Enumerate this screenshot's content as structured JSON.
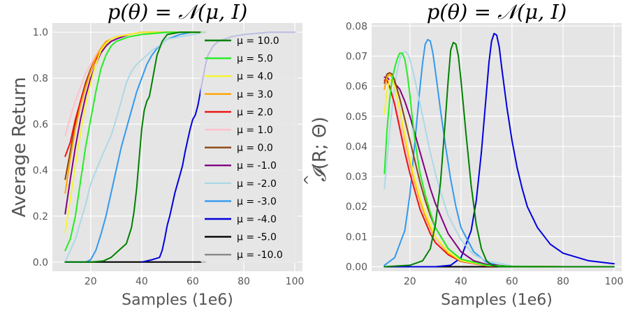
{
  "chart_data": [
    {
      "type": "line",
      "title": "p(θ) = 𝒩(μ, I)",
      "xlabel": "Samples (1e6)",
      "ylabel": "Average Return",
      "xlim": [
        5,
        103
      ],
      "ylim": [
        -0.04,
        1.04
      ],
      "xticks": [
        "20",
        "40",
        "60",
        "80",
        "100"
      ],
      "yticks": [
        "0.0",
        "0.2",
        "0.4",
        "0.6",
        "0.8",
        "1.0"
      ],
      "grid": true,
      "legend": "right",
      "series": [
        {
          "name": "μ = 10.0",
          "color": "#008000",
          "x": [
            10,
            20,
            25,
            28,
            30,
            32,
            34,
            36,
            37,
            38,
            39,
            40,
            41,
            42,
            43,
            44,
            45,
            46,
            48,
            50,
            55,
            60,
            65
          ],
          "y": [
            0,
            0,
            0.005,
            0.02,
            0.04,
            0.06,
            0.08,
            0.15,
            0.22,
            0.32,
            0.45,
            0.58,
            0.66,
            0.7,
            0.72,
            0.78,
            0.84,
            0.9,
            0.96,
            0.99,
            1.0,
            1.0,
            1.0
          ]
        },
        {
          "name": "μ = 5.0",
          "color": "#22ee22",
          "x": [
            10,
            12,
            14,
            16,
            18,
            20,
            22,
            24,
            26,
            28,
            30,
            35,
            40,
            50,
            60,
            65
          ],
          "y": [
            0.05,
            0.1,
            0.2,
            0.35,
            0.5,
            0.62,
            0.74,
            0.84,
            0.9,
            0.94,
            0.96,
            0.98,
            0.99,
            1.0,
            1.0,
            1.0
          ]
        },
        {
          "name": "μ = 4.0",
          "color": "#f5f530",
          "x": [
            10,
            12,
            14,
            16,
            18,
            20,
            22,
            24,
            26,
            28,
            30,
            35,
            40,
            50,
            65
          ],
          "y": [
            0.13,
            0.27,
            0.42,
            0.56,
            0.68,
            0.78,
            0.86,
            0.92,
            0.95,
            0.97,
            0.98,
            0.99,
            1.0,
            1.0,
            1.0
          ]
        },
        {
          "name": "μ = 3.0",
          "color": "#ffa500",
          "x": [
            10,
            12,
            14,
            16,
            18,
            20,
            22,
            24,
            26,
            28,
            30,
            35,
            40,
            50,
            65
          ],
          "y": [
            0.3,
            0.45,
            0.58,
            0.68,
            0.76,
            0.83,
            0.89,
            0.93,
            0.96,
            0.97,
            0.98,
            0.99,
            1.0,
            1.0,
            1.0
          ]
        },
        {
          "name": "μ = 2.0",
          "color": "#ee1111",
          "x": [
            10,
            12,
            14,
            16,
            18,
            20,
            22,
            24,
            26,
            28,
            30,
            35,
            40,
            50,
            65
          ],
          "y": [
            0.46,
            0.52,
            0.62,
            0.7,
            0.77,
            0.83,
            0.88,
            0.92,
            0.95,
            0.97,
            0.98,
            0.99,
            1.0,
            1.0,
            1.0
          ]
        },
        {
          "name": "μ = 1.0",
          "color": "#ffc0cb",
          "x": [
            10,
            12,
            14,
            16,
            18,
            20,
            22,
            24,
            26,
            28,
            30,
            35,
            40,
            50,
            65
          ],
          "y": [
            0.55,
            0.63,
            0.7,
            0.76,
            0.82,
            0.86,
            0.9,
            0.93,
            0.95,
            0.97,
            0.98,
            0.99,
            1.0,
            1.0,
            1.0
          ]
        },
        {
          "name": "μ = 0.0",
          "color": "#8b4513",
          "x": [
            10,
            12,
            14,
            16,
            18,
            20,
            22,
            24,
            26,
            28,
            30,
            35,
            40,
            50,
            65
          ],
          "y": [
            0.36,
            0.48,
            0.6,
            0.7,
            0.78,
            0.84,
            0.89,
            0.93,
            0.95,
            0.97,
            0.98,
            0.99,
            1.0,
            1.0,
            1.0
          ]
        },
        {
          "name": "μ = -1.0",
          "color": "#800080",
          "x": [
            10,
            12,
            14,
            16,
            18,
            20,
            22,
            24,
            26,
            28,
            30,
            35,
            40,
            50,
            65
          ],
          "y": [
            0.21,
            0.36,
            0.5,
            0.62,
            0.72,
            0.8,
            0.86,
            0.91,
            0.94,
            0.96,
            0.97,
            0.99,
            1.0,
            1.0,
            1.0
          ]
        },
        {
          "name": "μ = -2.0",
          "color": "#add8e6",
          "x": [
            10,
            14,
            18,
            20,
            24,
            28,
            30,
            32,
            34,
            36,
            38,
            40,
            44,
            48,
            50,
            55,
            60,
            65
          ],
          "y": [
            0.0,
            0.1,
            0.25,
            0.34,
            0.45,
            0.55,
            0.62,
            0.7,
            0.78,
            0.83,
            0.86,
            0.88,
            0.92,
            0.95,
            0.97,
            0.98,
            0.99,
            1.0
          ]
        },
        {
          "name": "μ = -3.0",
          "color": "#3399ee",
          "x": [
            10,
            18,
            20,
            22,
            24,
            26,
            28,
            30,
            32,
            34,
            36,
            38,
            40,
            42,
            44,
            46,
            48,
            50,
            55,
            60,
            65
          ],
          "y": [
            0,
            0,
            0.01,
            0.05,
            0.12,
            0.2,
            0.3,
            0.4,
            0.5,
            0.58,
            0.66,
            0.74,
            0.8,
            0.86,
            0.9,
            0.93,
            0.95,
            0.97,
            0.99,
            1.0,
            1.0
          ]
        },
        {
          "name": "μ = -4.0",
          "color": "#0000dd",
          "x": [
            40,
            44,
            47,
            48,
            49,
            50,
            51,
            52,
            53,
            54,
            55,
            56,
            57,
            58,
            59,
            60,
            61,
            62,
            63,
            64,
            65,
            66,
            68,
            70,
            75,
            80,
            90,
            100
          ],
          "y": [
            0,
            0.01,
            0.02,
            0.05,
            0.1,
            0.16,
            0.2,
            0.25,
            0.3,
            0.34,
            0.38,
            0.42,
            0.48,
            0.53,
            0.58,
            0.62,
            0.64,
            0.68,
            0.74,
            0.8,
            0.86,
            0.9,
            0.94,
            0.96,
            0.98,
            0.99,
            1.0,
            1.0
          ]
        },
        {
          "name": "μ = -5.0",
          "color": "#000000",
          "x": [
            10,
            65
          ],
          "y": [
            0,
            0
          ]
        },
        {
          "name": "μ = -10.0",
          "color": "#888888",
          "x": [
            10,
            65
          ],
          "y": [
            0,
            0
          ]
        }
      ]
    },
    {
      "type": "line",
      "title": "p(θ) = 𝒩(μ, I)",
      "xlabel": "Samples (1e6)",
      "ylabel": "Î(R; Θ)",
      "ylabel_parts": {
        "hat": "^",
        "base": "𝓘",
        "args": "(R; Θ)"
      },
      "xlim": [
        5,
        103
      ],
      "ylim": [
        -0.0015,
        0.081
      ],
      "xticks": [
        "20",
        "40",
        "60",
        "80",
        "100"
      ],
      "yticks": [
        "0.00",
        "0.01",
        "0.02",
        "0.03",
        "0.04",
        "0.05",
        "0.06",
        "0.07",
        "0.08"
      ],
      "grid": true,
      "legend": "none",
      "series": [
        {
          "name": "μ = 10.0",
          "color": "#008000",
          "x": [
            10,
            20,
            25,
            28,
            30,
            32,
            34,
            35,
            36,
            37,
            38,
            39,
            40,
            42,
            44,
            46,
            48,
            50,
            52,
            55,
            60,
            80,
            100
          ],
          "y": [
            0,
            0.0005,
            0.002,
            0.006,
            0.014,
            0.028,
            0.05,
            0.062,
            0.072,
            0.0745,
            0.074,
            0.07,
            0.062,
            0.044,
            0.027,
            0.014,
            0.006,
            0.002,
            0.0005,
            0,
            0,
            0,
            0
          ]
        },
        {
          "name": "μ = 5.0",
          "color": "#22ee22",
          "x": [
            10,
            11,
            12,
            13,
            14,
            15,
            16,
            17,
            18,
            19,
            20,
            21,
            22,
            23,
            24,
            26,
            28,
            30,
            35,
            40,
            50,
            60,
            80,
            100
          ],
          "y": [
            0.031,
            0.045,
            0.055,
            0.062,
            0.066,
            0.069,
            0.071,
            0.071,
            0.069,
            0.064,
            0.057,
            0.049,
            0.042,
            0.036,
            0.031,
            0.024,
            0.018,
            0.013,
            0.006,
            0.0025,
            0.0005,
            0.0001,
            0,
            0
          ]
        },
        {
          "name": "μ = 4.0",
          "color": "#f5f530",
          "x": [
            10,
            11,
            12,
            13,
            14,
            16,
            18,
            20,
            22,
            24,
            26,
            28,
            30,
            35,
            40,
            50,
            60,
            80,
            100
          ],
          "y": [
            0.051,
            0.058,
            0.062,
            0.062,
            0.06,
            0.052,
            0.044,
            0.036,
            0.029,
            0.023,
            0.018,
            0.014,
            0.01,
            0.005,
            0.002,
            0.0004,
            0.0001,
            0,
            0
          ]
        },
        {
          "name": "μ = 3.0",
          "color": "#ffa500",
          "x": [
            10,
            11,
            12,
            13,
            14,
            16,
            18,
            20,
            22,
            24,
            26,
            28,
            30,
            35,
            40,
            50,
            60,
            80,
            100
          ],
          "y": [
            0.059,
            0.063,
            0.064,
            0.063,
            0.06,
            0.052,
            0.043,
            0.035,
            0.028,
            0.022,
            0.017,
            0.013,
            0.01,
            0.0045,
            0.002,
            0.0004,
            0.0001,
            0,
            0
          ]
        },
        {
          "name": "μ = 2.0",
          "color": "#ee1111",
          "x": [
            10,
            11,
            12,
            14,
            16,
            18,
            20,
            22,
            24,
            26,
            28,
            30,
            35,
            40,
            50,
            60,
            80,
            100
          ],
          "y": [
            0.062,
            0.062,
            0.06,
            0.054,
            0.046,
            0.038,
            0.031,
            0.025,
            0.019,
            0.015,
            0.011,
            0.008,
            0.004,
            0.0018,
            0.0003,
            0,
            0,
            0
          ]
        },
        {
          "name": "μ = 1.0",
          "color": "#ffc0cb",
          "x": [
            10,
            11,
            12,
            14,
            16,
            18,
            20,
            22,
            24,
            26,
            28,
            30,
            35,
            40,
            50,
            60,
            80,
            100
          ],
          "y": [
            0.06,
            0.061,
            0.06,
            0.055,
            0.048,
            0.04,
            0.033,
            0.027,
            0.021,
            0.016,
            0.012,
            0.009,
            0.0045,
            0.002,
            0.0004,
            0.0001,
            0,
            0
          ]
        },
        {
          "name": "μ = 0.0",
          "color": "#8b4513",
          "x": [
            10,
            11,
            12,
            13,
            14,
            16,
            18,
            20,
            22,
            24,
            26,
            28,
            30,
            35,
            40,
            50,
            60,
            80,
            100
          ],
          "y": [
            0.061,
            0.064,
            0.0645,
            0.064,
            0.062,
            0.056,
            0.049,
            0.042,
            0.035,
            0.028,
            0.022,
            0.017,
            0.013,
            0.006,
            0.0025,
            0.0005,
            0.0001,
            0,
            0
          ]
        },
        {
          "name": "μ = -1.0",
          "color": "#800080",
          "x": [
            10,
            11,
            12,
            13,
            14,
            16,
            18,
            20,
            22,
            24,
            26,
            28,
            30,
            32,
            35,
            40,
            45,
            50,
            60,
            80,
            100
          ],
          "y": [
            0.063,
            0.063,
            0.062,
            0.062,
            0.061,
            0.059,
            0.055,
            0.05,
            0.044,
            0.038,
            0.032,
            0.026,
            0.021,
            0.017,
            0.011,
            0.005,
            0.002,
            0.0008,
            0.0001,
            0,
            0
          ]
        },
        {
          "name": "μ = -2.0",
          "color": "#add8e6",
          "x": [
            10,
            12,
            14,
            15,
            16,
            17,
            18,
            19,
            20,
            22,
            24,
            26,
            28,
            30,
            32,
            35,
            40,
            45,
            50,
            60,
            80,
            100
          ],
          "y": [
            0.026,
            0.045,
            0.06,
            0.065,
            0.069,
            0.071,
            0.0715,
            0.071,
            0.069,
            0.062,
            0.054,
            0.046,
            0.038,
            0.031,
            0.025,
            0.017,
            0.009,
            0.004,
            0.002,
            0.0003,
            0,
            0
          ]
        },
        {
          "name": "μ = -3.0",
          "color": "#3399ee",
          "x": [
            10,
            14,
            18,
            20,
            22,
            24,
            25,
            26,
            27,
            28,
            29,
            30,
            32,
            34,
            36,
            38,
            40,
            45,
            50,
            55,
            60,
            80,
            100
          ],
          "y": [
            0.0005,
            0.003,
            0.012,
            0.024,
            0.042,
            0.06,
            0.068,
            0.074,
            0.0755,
            0.075,
            0.071,
            0.065,
            0.052,
            0.04,
            0.029,
            0.02,
            0.013,
            0.005,
            0.0015,
            0.0004,
            0.0001,
            0,
            0
          ]
        },
        {
          "name": "μ = -4.0",
          "color": "#0000dd",
          "x": [
            10,
            30,
            36,
            40,
            44,
            46,
            48,
            50,
            51,
            52,
            53,
            54,
            55,
            56,
            58,
            60,
            62,
            64,
            66,
            70,
            75,
            80,
            90,
            100
          ],
          "y": [
            0,
            0,
            0.0005,
            0.003,
            0.012,
            0.022,
            0.038,
            0.058,
            0.068,
            0.075,
            0.0775,
            0.077,
            0.073,
            0.066,
            0.053,
            0.042,
            0.033,
            0.026,
            0.02,
            0.013,
            0.0075,
            0.0045,
            0.002,
            0.001
          ]
        },
        {
          "name": "μ = -5.0",
          "color": "#000000",
          "x": [
            10,
            100
          ],
          "y": [
            0,
            0
          ]
        },
        {
          "name": "μ = -10.0",
          "color": "#888888",
          "x": [
            10,
            100
          ],
          "y": [
            0,
            0
          ]
        }
      ]
    }
  ]
}
